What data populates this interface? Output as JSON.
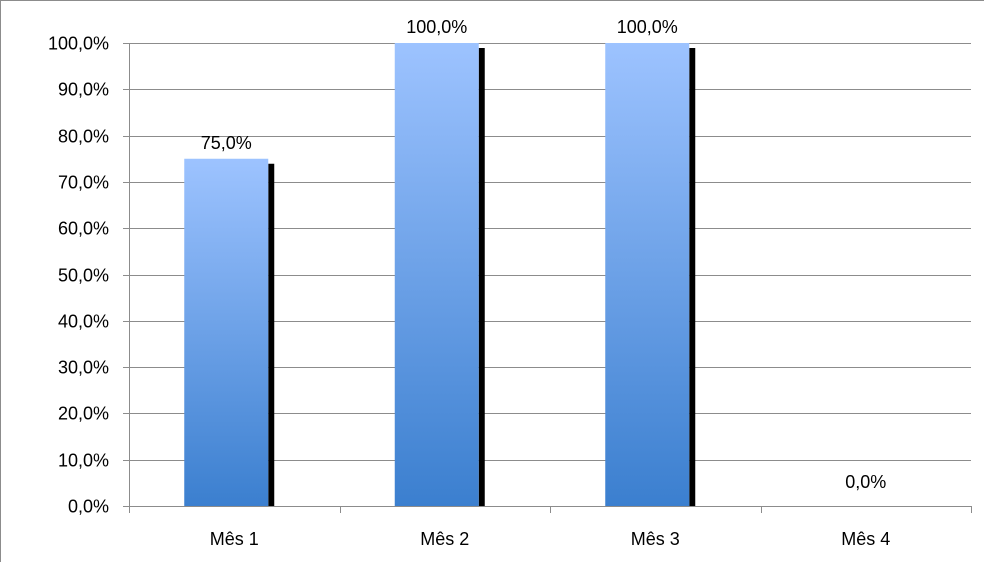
{
  "chart_data": {
    "type": "bar",
    "categories": [
      "Mês 1",
      "Mês 2",
      "Mês 3",
      "Mês 4"
    ],
    "values": [
      75.0,
      100.0,
      100.0,
      0.0
    ],
    "data_labels": [
      "75,0%",
      "100,0%",
      "100,0%",
      "0,0%"
    ],
    "y_ticks": [
      "0,0%",
      "10,0%",
      "20,0%",
      "30,0%",
      "40,0%",
      "50,0%",
      "60,0%",
      "70,0%",
      "80,0%",
      "90,0%",
      "100,0%"
    ],
    "ylim": [
      0,
      100
    ],
    "title": "",
    "xlabel": "",
    "ylabel": "",
    "grid": true,
    "legend": "none",
    "colors": {
      "bar_top": "#9dc3ff",
      "bar_bottom": "#3b7fcf",
      "bar_shadow": "#000000",
      "grid": "#8c8c8c",
      "text": "#000000"
    }
  }
}
